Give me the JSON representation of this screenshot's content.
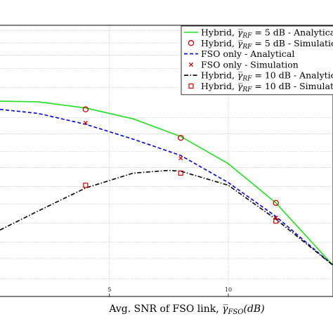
{
  "chart_data": {
    "type": "line",
    "title": "",
    "xlabel": "Avg. SNR of FSO link, γ̄_FSO(dB)",
    "xlabel_parts": {
      "prefix": "Avg. SNR of FSO link, ",
      "symbol": "γ",
      "sub": "FSO",
      "suffix": "(dB)"
    },
    "xlim": [
      0.4,
      14.4
    ],
    "ylim": [
      0,
      1
    ],
    "xticks": [
      5,
      10
    ],
    "xtick_labels": [
      "5",
      "10"
    ],
    "ygrid": [
      0.065,
      0.14,
      0.2,
      0.27,
      0.34,
      0.405,
      0.475,
      0.535,
      0.6,
      0.66,
      0.77,
      0.84,
      0.89,
      0.935,
      0.98
    ],
    "grid": true,
    "legend_position": "top-right",
    "series": [
      {
        "name": "Hybrid, γ̄_RF = 5 dB - Analytical",
        "legend": {
          "prefix": "Hybrid, ",
          "sub": "RF",
          "suffix": " = 5 dB - Analytical"
        },
        "style": "solid",
        "color": "#22dd22",
        "marker": "none",
        "x": [
          0.4,
          2,
          4,
          6,
          8,
          10,
          12,
          14.4
        ],
        "y": [
          0.72,
          0.718,
          0.695,
          0.655,
          0.59,
          0.49,
          0.345,
          0.115
        ]
      },
      {
        "name": "Hybrid, γ̄_RF = 5 dB - Simulation",
        "legend": {
          "prefix": "Hybrid, ",
          "sub": "RF",
          "suffix": " = 5 dB - Simulation"
        },
        "style": "none",
        "color": "#cc0000",
        "marker": "circle",
        "x": [
          4,
          8,
          12
        ],
        "y": [
          0.69,
          0.585,
          0.345
        ]
      },
      {
        "name": "FSO only - Analytical",
        "legend": {
          "text": "FSO only - Analytical"
        },
        "style": "dashed",
        "color": "#0000cc",
        "marker": "none",
        "x": [
          0.4,
          2,
          4,
          6,
          8,
          10,
          12,
          14.4
        ],
        "y": [
          0.69,
          0.675,
          0.635,
          0.58,
          0.52,
          0.42,
          0.295,
          0.115
        ]
      },
      {
        "name": "FSO only - Simulation",
        "legend": {
          "text": "FSO only - Simulation"
        },
        "style": "none",
        "color": "#dd0000",
        "marker": "x",
        "x": [
          4,
          8,
          12
        ],
        "y": [
          0.64,
          0.51,
          0.29
        ]
      },
      {
        "name": "Hybrid, γ̄_RF = 10 dB - Analytical",
        "legend": {
          "prefix": "Hybrid, ",
          "sub": "RF",
          "suffix": " = 10 dB - Analytical"
        },
        "style": "dashdot",
        "color": "#000000",
        "marker": "none",
        "x": [
          0.4,
          2,
          4,
          6,
          7.5,
          8,
          10,
          12,
          14.4
        ],
        "y": [
          0.245,
          0.315,
          0.4,
          0.455,
          0.465,
          0.462,
          0.41,
          0.285,
          0.115
        ]
      },
      {
        "name": "Hybrid, γ̄_RF = 10 dB - Simulation",
        "legend": {
          "prefix": "Hybrid, ",
          "sub": "RF",
          "suffix": " = 10 dB - Simulation"
        },
        "style": "none",
        "color": "#cc0000",
        "marker": "square",
        "x": [
          4,
          8,
          12
        ],
        "y": [
          0.41,
          0.455,
          0.278
        ]
      }
    ]
  }
}
